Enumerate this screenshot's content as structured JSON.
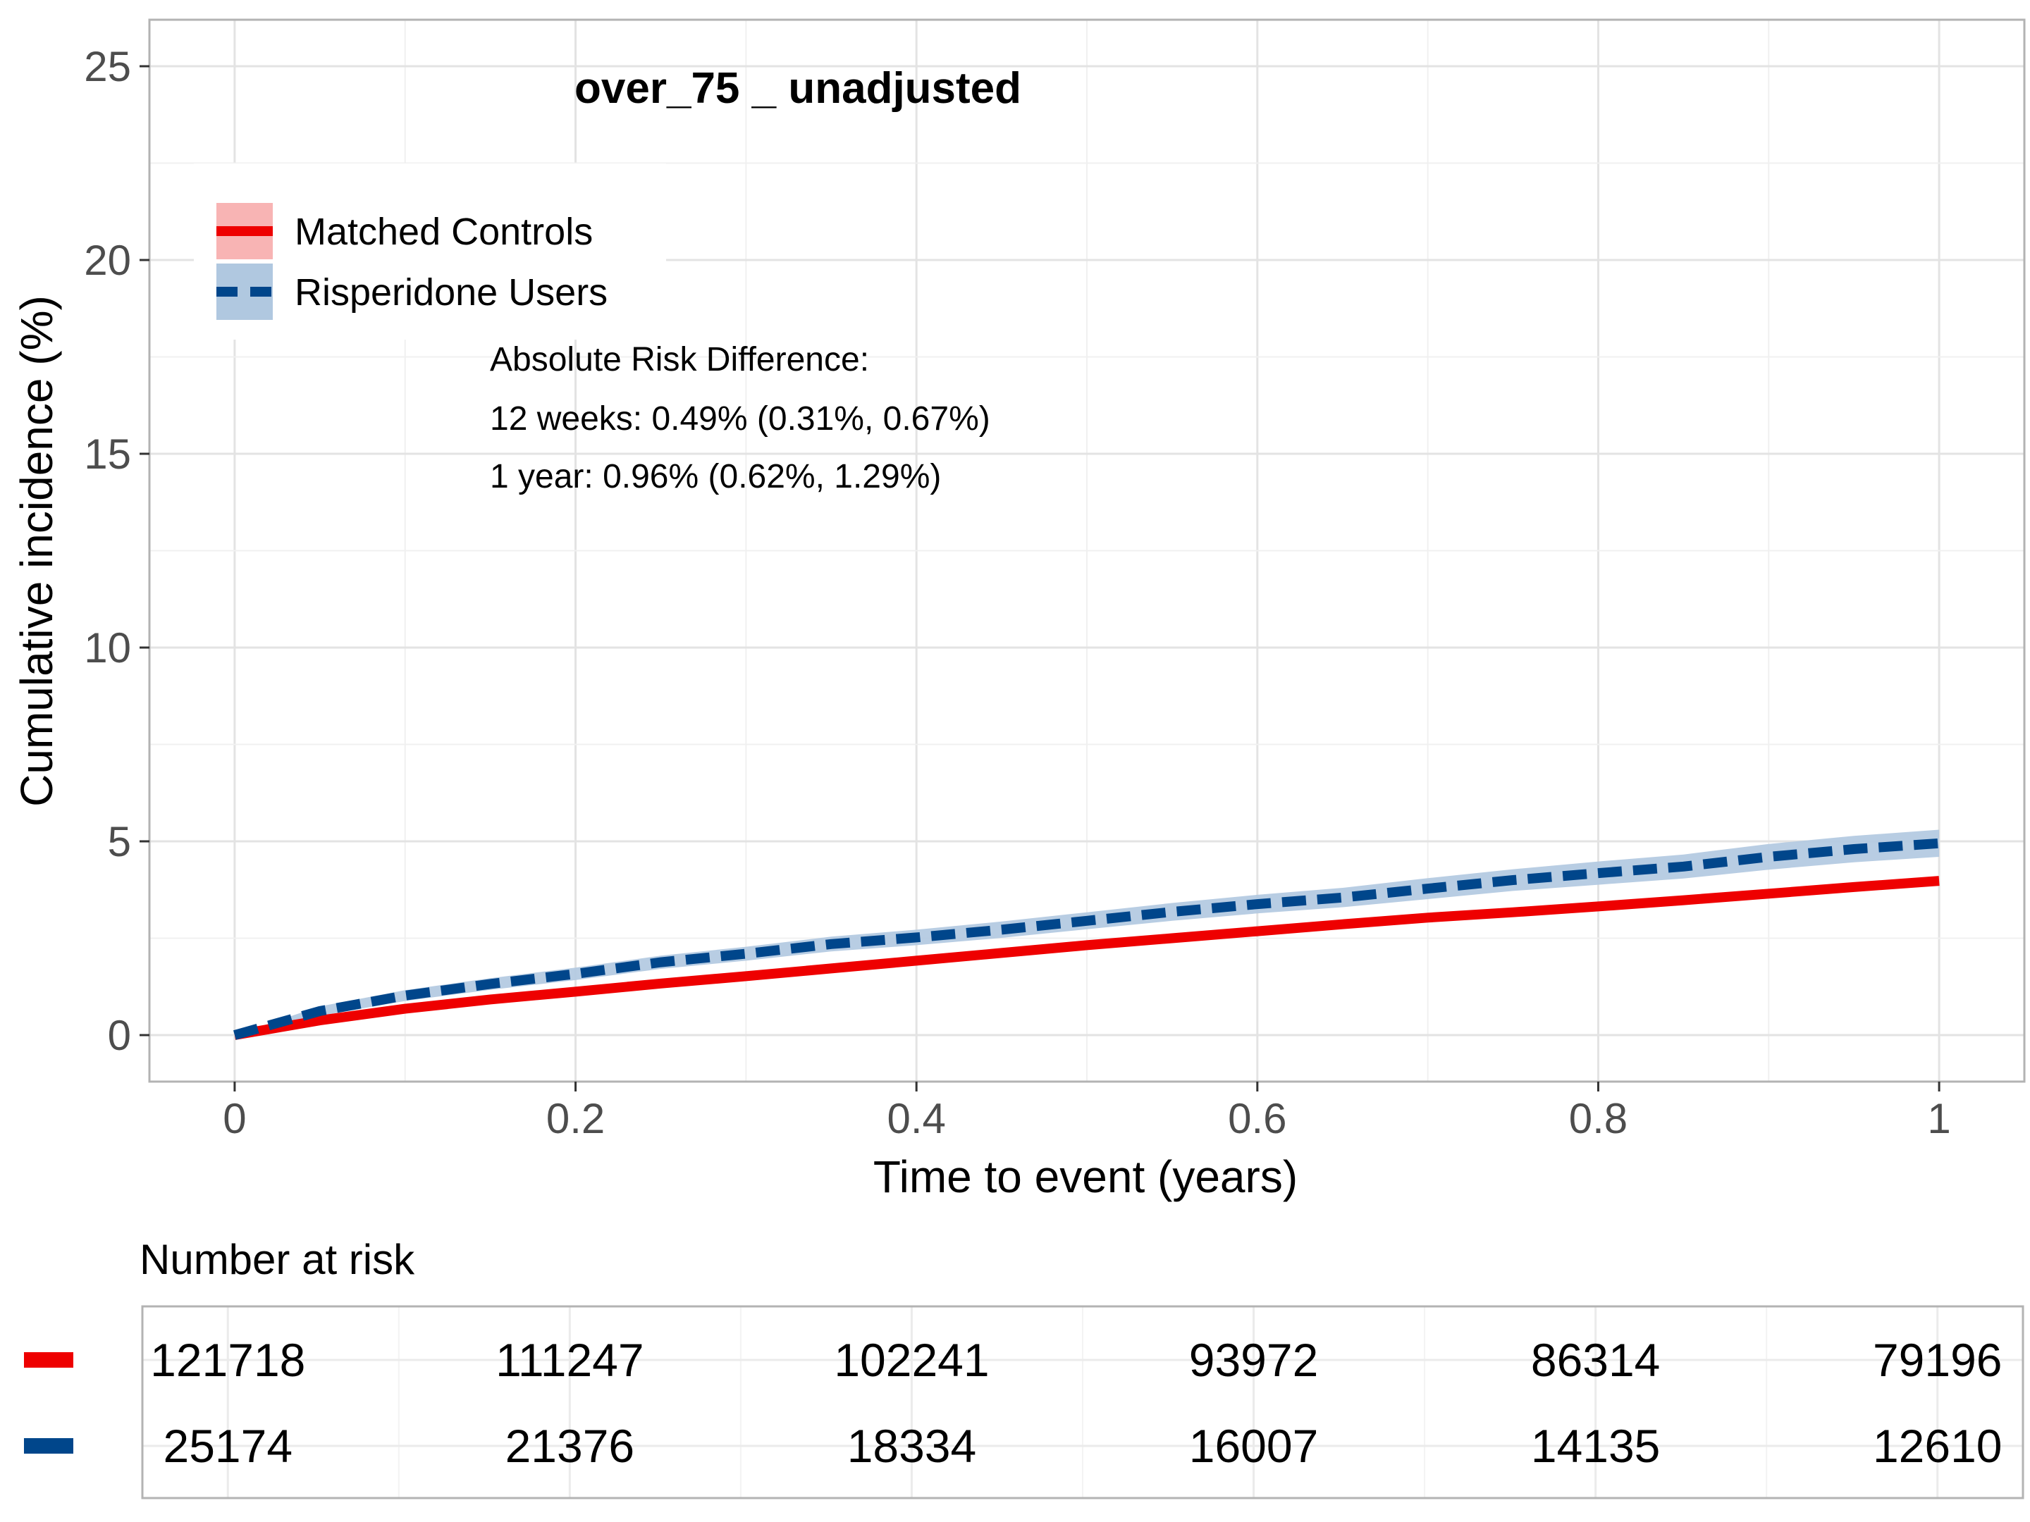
{
  "chart_data": {
    "type": "line",
    "title": "over_75 _ unadjusted",
    "xlabel": "Time to event (years)",
    "ylabel": "Cumulative incidence (%)",
    "xlim": [
      -0.05,
      1.05
    ],
    "ylim": [
      -1.2,
      26.2
    ],
    "x_ticks": [
      0,
      0.2,
      0.4,
      0.6,
      0.8,
      1
    ],
    "x_tick_labels": [
      "0",
      "0.2",
      "0.4",
      "0.6",
      "0.8",
      "1"
    ],
    "y_ticks": [
      0,
      5,
      10,
      15,
      20,
      25
    ],
    "y_tick_labels": [
      "0",
      "5",
      "10",
      "15",
      "20",
      "25"
    ],
    "grid": true,
    "legend": {
      "position": "top-left",
      "entries": [
        "Matched Controls",
        "Risperidone Users"
      ]
    },
    "series": [
      {
        "name": "Matched Controls",
        "color": "#EE0000",
        "band_color": "#F8B4B4",
        "line_style": "solid",
        "x": [
          0,
          0.05,
          0.1,
          0.15,
          0.2,
          0.25,
          0.3,
          0.35,
          0.4,
          0.45,
          0.5,
          0.55,
          0.6,
          0.65,
          0.7,
          0.75,
          0.8,
          0.85,
          0.9,
          0.95,
          1.0
        ],
        "y": [
          0,
          0.38,
          0.68,
          0.92,
          1.12,
          1.33,
          1.52,
          1.72,
          1.92,
          2.12,
          2.32,
          2.5,
          2.68,
          2.86,
          3.03,
          3.17,
          3.32,
          3.48,
          3.65,
          3.82,
          3.98
        ],
        "lower": [
          0,
          0.34,
          0.63,
          0.87,
          1.07,
          1.28,
          1.47,
          1.66,
          1.86,
          2.06,
          2.26,
          2.44,
          2.62,
          2.79,
          2.96,
          3.1,
          3.25,
          3.41,
          3.57,
          3.74,
          3.9
        ],
        "upper": [
          0,
          0.42,
          0.73,
          0.97,
          1.17,
          1.38,
          1.57,
          1.78,
          1.98,
          2.18,
          2.38,
          2.56,
          2.74,
          2.93,
          3.1,
          3.24,
          3.39,
          3.55,
          3.73,
          3.9,
          4.06
        ]
      },
      {
        "name": "Risperidone Users",
        "color": "#00468B",
        "band_color": "#B0C8E0",
        "line_style": "dashed",
        "x": [
          0,
          0.05,
          0.1,
          0.15,
          0.2,
          0.25,
          0.3,
          0.35,
          0.4,
          0.45,
          0.5,
          0.55,
          0.6,
          0.65,
          0.7,
          0.75,
          0.8,
          0.85,
          0.9,
          0.95,
          1.0
        ],
        "y": [
          0,
          0.62,
          1.02,
          1.32,
          1.58,
          1.88,
          2.1,
          2.35,
          2.52,
          2.72,
          2.95,
          3.18,
          3.38,
          3.55,
          3.78,
          4.0,
          4.18,
          4.35,
          4.6,
          4.8,
          4.95
        ],
        "lower": [
          0,
          0.5,
          0.88,
          1.17,
          1.42,
          1.71,
          1.92,
          2.16,
          2.32,
          2.51,
          2.73,
          2.95,
          3.14,
          3.3,
          3.51,
          3.72,
          3.88,
          4.04,
          4.27,
          4.46,
          4.6
        ],
        "upper": [
          0,
          0.74,
          1.16,
          1.47,
          1.74,
          2.05,
          2.28,
          2.54,
          2.72,
          2.93,
          3.17,
          3.41,
          3.62,
          3.8,
          4.05,
          4.28,
          4.48,
          4.66,
          4.93,
          5.14,
          5.3
        ]
      }
    ],
    "annotation": {
      "lines": [
        "Absolute Risk Difference:",
        "12 weeks: 0.49% (0.31%, 0.67%)",
        "1 year: 0.96% (0.62%, 1.29%)"
      ]
    },
    "risk_table": {
      "title": "Number at risk",
      "times": [
        0,
        0.2,
        0.4,
        0.6,
        0.8,
        1
      ],
      "rows": [
        {
          "color": "#EE0000",
          "values": [
            "121718",
            "111247",
            "102241",
            "93972",
            "86314",
            "79196"
          ]
        },
        {
          "color": "#00468B",
          "values": [
            "25174",
            "21376",
            "18334",
            "16007",
            "14135",
            "12610"
          ]
        }
      ]
    }
  }
}
